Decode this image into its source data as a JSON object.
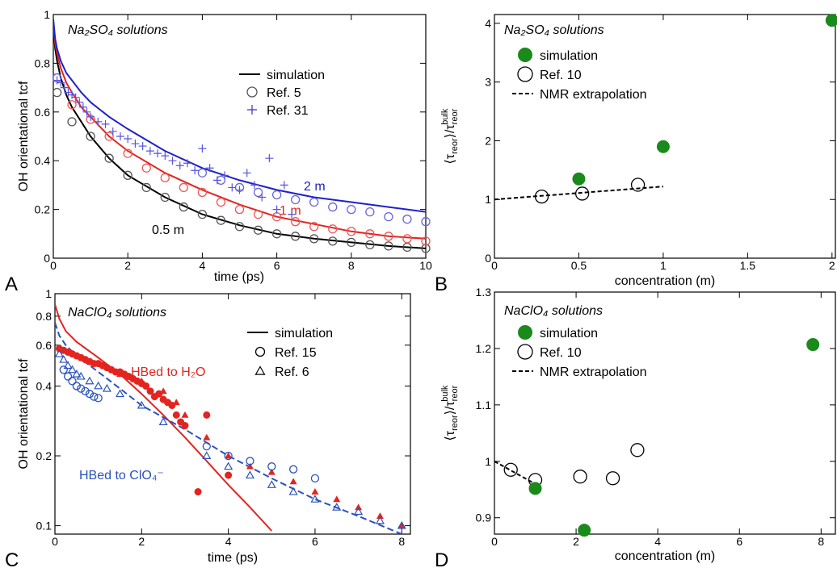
{
  "chart_data": [
    {
      "type": "line",
      "panel": "A",
      "title": "Na₂SO₄ solutions",
      "x_label": "time (ps)",
      "y_label": "OH orientational tcf",
      "xlim": [
        0,
        10
      ],
      "xticks": [
        0,
        2,
        4,
        6,
        8,
        10
      ],
      "ylim": [
        0,
        1
      ],
      "yticks": [
        0,
        0.2,
        0.4,
        0.6,
        0.8,
        1
      ],
      "legend": [
        {
          "name": "simulation",
          "marker": "line",
          "color": "#000000"
        },
        {
          "name": "Ref. 5",
          "marker": "circle",
          "color": "#555555"
        },
        {
          "name": "Ref. 31",
          "marker": "plus",
          "color": "#3333cc"
        }
      ],
      "series": [
        {
          "style": "line",
          "label": "0.5 m",
          "color": "#000000",
          "x": [
            0,
            0.05,
            0.1,
            0.2,
            0.35,
            0.5,
            0.75,
            1,
            1.5,
            2,
            3,
            4,
            5,
            6,
            7,
            8,
            9,
            10
          ],
          "values": [
            0.95,
            0.86,
            0.81,
            0.74,
            0.67,
            0.62,
            0.56,
            0.5,
            0.41,
            0.34,
            0.25,
            0.18,
            0.135,
            0.1,
            0.08,
            0.065,
            0.05,
            0.04
          ]
        },
        {
          "style": "line",
          "label": "1 m",
          "color": "#e3241f",
          "x": [
            0,
            0.05,
            0.1,
            0.2,
            0.35,
            0.5,
            0.75,
            1,
            1.5,
            2,
            3,
            4,
            5,
            6,
            7,
            8,
            9,
            10
          ],
          "values": [
            0.97,
            0.88,
            0.84,
            0.78,
            0.72,
            0.68,
            0.62,
            0.58,
            0.5,
            0.44,
            0.35,
            0.28,
            0.22,
            0.17,
            0.14,
            0.11,
            0.09,
            0.08
          ]
        },
        {
          "style": "line",
          "label": "2 m",
          "color": "#2020cc",
          "x": [
            0,
            0.05,
            0.1,
            0.2,
            0.35,
            0.5,
            0.75,
            1,
            1.5,
            2,
            3,
            4,
            5,
            6,
            7,
            8,
            9,
            10
          ],
          "values": [
            0.98,
            0.9,
            0.86,
            0.81,
            0.76,
            0.73,
            0.68,
            0.64,
            0.58,
            0.53,
            0.44,
            0.37,
            0.32,
            0.28,
            0.25,
            0.23,
            0.21,
            0.19
          ]
        },
        {
          "style": "circle",
          "color": "#555555",
          "x": [
            0.1,
            0.5,
            1,
            1.5,
            2,
            2.5,
            3,
            3.5,
            4,
            4.5,
            5,
            5.5,
            6,
            6.5,
            7,
            7.5,
            8,
            8.5,
            9,
            9.5,
            10
          ],
          "values": [
            0.68,
            0.56,
            0.5,
            0.41,
            0.34,
            0.29,
            0.25,
            0.21,
            0.18,
            0.155,
            0.13,
            0.115,
            0.1,
            0.09,
            0.08,
            0.07,
            0.065,
            0.055,
            0.05,
            0.045,
            0.04
          ]
        },
        {
          "style": "circle",
          "color": "#ee5555",
          "x": [
            0.1,
            0.5,
            1,
            1.5,
            2,
            2.5,
            3,
            3.5,
            4,
            4.5,
            5,
            5.5,
            6,
            6.5,
            7,
            7.5,
            8,
            8.5,
            9,
            9.5,
            10
          ],
          "values": [
            0.74,
            0.63,
            0.57,
            0.5,
            0.43,
            0.37,
            0.33,
            0.29,
            0.27,
            0.23,
            0.2,
            0.18,
            0.17,
            0.15,
            0.13,
            0.12,
            0.11,
            0.1,
            0.09,
            0.08,
            0.07
          ]
        },
        {
          "style": "circle",
          "color": "#6666dd",
          "x": [
            0.1,
            4,
            4.5,
            5,
            5.5,
            6,
            6.5,
            7,
            7.5,
            8,
            8.5,
            9,
            9.5,
            10
          ],
          "values": [
            0.74,
            0.35,
            0.32,
            0.29,
            0.27,
            0.26,
            0.24,
            0.23,
            0.21,
            0.2,
            0.19,
            0.17,
            0.16,
            0.15
          ]
        },
        {
          "style": "plus",
          "color": "#5555dd",
          "x": [
            0.1,
            0.2,
            0.3,
            0.4,
            0.5,
            0.6,
            0.7,
            0.8,
            0.9,
            1,
            1.2,
            1.4,
            1.6,
            1.8,
            2,
            2.2,
            2.4,
            2.6,
            2.8,
            3,
            3.2,
            3.4,
            3.6,
            3.8,
            4,
            4.2,
            4.4,
            4.6,
            4.8,
            5,
            5.2,
            5.4,
            5.6,
            5.8,
            6,
            6.2,
            6.4
          ],
          "values": [
            0.73,
            0.72,
            0.7,
            0.68,
            0.67,
            0.66,
            0.64,
            0.62,
            0.6,
            0.58,
            0.56,
            0.55,
            0.52,
            0.5,
            0.49,
            0.47,
            0.46,
            0.44,
            0.43,
            0.42,
            0.4,
            0.38,
            0.39,
            0.36,
            0.45,
            0.37,
            0.32,
            0.34,
            0.29,
            0.28,
            0.35,
            0.3,
            0.25,
            0.41,
            0.2,
            0.3,
            0.18
          ]
        }
      ]
    },
    {
      "type": "scatter",
      "panel": "B",
      "title": "Na₂SO₄ solutions",
      "x_label": "concentration (m)",
      "y_label": [
        "⟨τ",
        "reor",
        "⟩/τ",
        "reor",
        "bulk"
      ],
      "xlim": [
        0,
        2.02
      ],
      "xticks": [
        0,
        0.5,
        1,
        1.5,
        2
      ],
      "ylim": [
        0,
        4.15
      ],
      "yticks": [
        0,
        1,
        2,
        3,
        4
      ],
      "legend": [
        {
          "name": "simulation",
          "marker": "filled-circle",
          "color": "#1a8a1a"
        },
        {
          "name": "Ref. 10",
          "marker": "circle",
          "color": "#000000"
        },
        {
          "name": "NMR extrapolation",
          "marker": "dashed",
          "color": "#000000"
        }
      ],
      "series": [
        {
          "style": "dashed",
          "color": "#000000",
          "x": [
            0,
            1
          ],
          "values": [
            1.0,
            1.22
          ]
        },
        {
          "style": "circle",
          "color": "#000000",
          "x": [
            0.28,
            0.52,
            0.85
          ],
          "values": [
            1.05,
            1.1,
            1.25
          ]
        },
        {
          "style": "filled-circle",
          "color": "#1a8a1a",
          "x": [
            0.5,
            1,
            2
          ],
          "values": [
            1.35,
            1.9,
            4.05
          ]
        }
      ]
    },
    {
      "type": "line",
      "panel": "C",
      "title": "NaClO₄ solutions",
      "x_label": "time (ps)",
      "y_label": "OH orientational tcf",
      "log_y": true,
      "xlim": [
        0,
        8.2
      ],
      "xticks": [
        0,
        2,
        4,
        6,
        8
      ],
      "ylim": [
        0.092,
        1
      ],
      "yticks": [
        0.1,
        0.2,
        0.4,
        0.6,
        0.8,
        1
      ],
      "legend": [
        {
          "name": "simulation",
          "marker": "line",
          "color": "#000000"
        },
        {
          "name": "Ref. 15",
          "marker": "circle",
          "color": "#000000"
        },
        {
          "name": "Ref. 6",
          "marker": "triangle",
          "color": "#000000"
        }
      ],
      "series": [
        {
          "style": "line",
          "label": "HBed to H₂O",
          "color": "#e3241f",
          "x": [
            0,
            0.1,
            0.25,
            0.5,
            1,
            1.5,
            2,
            2.5,
            3,
            3.5,
            4,
            4.5,
            5
          ],
          "values": [
            0.9,
            0.78,
            0.69,
            0.62,
            0.53,
            0.45,
            0.37,
            0.3,
            0.24,
            0.19,
            0.15,
            0.12,
            0.095
          ]
        },
        {
          "style": "dashed",
          "label": "HBed to ClO₄⁻",
          "color": "#2a52be",
          "x": [
            0,
            0.1,
            0.25,
            0.5,
            1,
            1.5,
            2,
            3,
            4,
            5,
            6,
            7,
            8
          ],
          "values": [
            0.75,
            0.66,
            0.6,
            0.54,
            0.46,
            0.39,
            0.33,
            0.26,
            0.2,
            0.16,
            0.13,
            0.11,
            0.092
          ]
        },
        {
          "style": "filled-circle",
          "color": "#e3241f",
          "x": [
            0.1,
            0.2,
            0.3,
            0.4,
            0.5,
            0.6,
            0.7,
            0.8,
            0.9,
            1,
            1.1,
            1.2,
            1.3,
            1.4,
            1.5,
            1.6,
            1.7,
            1.8,
            1.9,
            2,
            2.1,
            2.2,
            2.3,
            2.4,
            2.5,
            2.6,
            2.7,
            2.8,
            2.9,
            3,
            3.3,
            3.5,
            4
          ],
          "values": [
            0.58,
            0.57,
            0.56,
            0.55,
            0.54,
            0.53,
            0.52,
            0.51,
            0.5,
            0.5,
            0.49,
            0.48,
            0.47,
            0.46,
            0.46,
            0.45,
            0.44,
            0.43,
            0.42,
            0.41,
            0.4,
            0.38,
            0.36,
            0.37,
            0.35,
            0.34,
            0.33,
            0.3,
            0.28,
            0.27,
            0.14,
            0.3,
            0.165
          ]
        },
        {
          "style": "filled-triangle",
          "color": "#e3241f",
          "x": [
            1.5,
            2,
            2.5,
            2.8,
            3,
            3.5,
            4,
            4.5,
            5,
            5.5,
            6,
            6.5,
            7,
            7.5,
            8
          ],
          "values": [
            0.45,
            0.42,
            0.38,
            0.34,
            0.3,
            0.24,
            0.2,
            0.18,
            0.17,
            0.155,
            0.14,
            0.13,
            0.12,
            0.11,
            0.1
          ]
        },
        {
          "style": "circle",
          "color": "#2a52be",
          "x": [
            0.2,
            0.3,
            0.4,
            0.5,
            0.6,
            0.7,
            0.8,
            0.9,
            1,
            3.5,
            4,
            4.5,
            5,
            5.5,
            6
          ],
          "values": [
            0.47,
            0.44,
            0.42,
            0.4,
            0.39,
            0.38,
            0.37,
            0.36,
            0.355,
            0.22,
            0.2,
            0.19,
            0.18,
            0.175,
            0.16
          ]
        },
        {
          "style": "triangle",
          "color": "#2a52be",
          "x": [
            0.1,
            0.2,
            0.3,
            0.4,
            0.5,
            0.6,
            0.8,
            1,
            1.2,
            1.5,
            2,
            2.5,
            3.5,
            4,
            4.5,
            5,
            5.5,
            6,
            6.5,
            7,
            7.5,
            8
          ],
          "values": [
            0.55,
            0.52,
            0.49,
            0.47,
            0.45,
            0.44,
            0.42,
            0.4,
            0.39,
            0.37,
            0.33,
            0.28,
            0.2,
            0.18,
            0.165,
            0.15,
            0.14,
            0.13,
            0.12,
            0.115,
            0.105,
            0.1
          ]
        }
      ]
    },
    {
      "type": "scatter",
      "panel": "D",
      "title": "NaClO₄ solutions",
      "x_label": "concentration (m)",
      "y_label": [
        "⟨τ",
        "reor",
        "⟩/τ",
        "reor",
        "bulk"
      ],
      "xlim": [
        0,
        8.35
      ],
      "xticks": [
        0,
        2,
        4,
        6,
        8
      ],
      "ylim": [
        0.871,
        1.3
      ],
      "yticks": [
        0.9,
        1,
        1.1,
        1.2,
        1.3
      ],
      "legend": [
        {
          "name": "simulation",
          "marker": "filled-circle",
          "color": "#1a8a1a"
        },
        {
          "name": "Ref. 10",
          "marker": "circle",
          "color": "#000000"
        },
        {
          "name": "NMR extrapolation",
          "marker": "dashed",
          "color": "#000000"
        }
      ],
      "series": [
        {
          "style": "dashed",
          "color": "#000000",
          "x": [
            0,
            1
          ],
          "values": [
            1.0,
            0.96
          ]
        },
        {
          "style": "circle",
          "color": "#000000",
          "x": [
            0.4,
            1,
            2.1,
            2.9,
            3.5
          ],
          "values": [
            0.985,
            0.967,
            0.973,
            0.97,
            1.02
          ]
        },
        {
          "style": "filled-circle",
          "color": "#1a8a1a",
          "x": [
            1,
            2.2,
            7.8
          ],
          "values": [
            0.952,
            0.878,
            1.207
          ]
        }
      ]
    }
  ]
}
